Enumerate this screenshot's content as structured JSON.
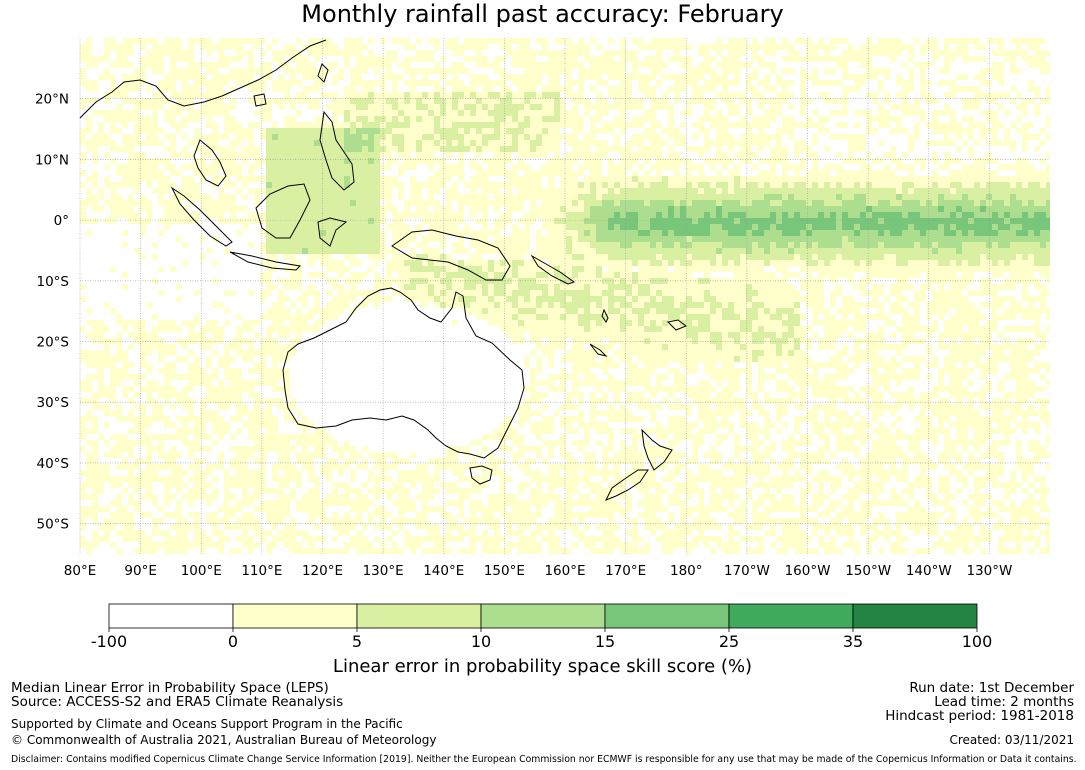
{
  "title": "Monthly rainfall past accuracy: February",
  "map": {
    "lon_ticks": [
      "80°E",
      "90°E",
      "100°E",
      "110°E",
      "120°E",
      "130°E",
      "140°E",
      "150°E",
      "160°E",
      "170°E",
      "180°",
      "170°W",
      "160°W",
      "150°W",
      "140°W",
      "130°W"
    ],
    "lat_ticks": [
      "20°N",
      "10°N",
      "0°",
      "10°S",
      "20°S",
      "30°S",
      "40°S",
      "50°S"
    ],
    "lon_range": [
      80,
      240
    ],
    "lat_range": [
      -55,
      30
    ]
  },
  "colorbar": {
    "title": "Linear error in probability space skill score (%)",
    "boundaries": [
      "-100",
      "0",
      "5",
      "10",
      "15",
      "25",
      "35",
      "100"
    ],
    "colors": [
      "#ffffff",
      "#ffffcc",
      "#d9f0a3",
      "#addd8e",
      "#78c679",
      "#41ab5d",
      "#238443"
    ]
  },
  "footer": {
    "line1": "Median Linear Error in Probability Space (LEPS)",
    "line2": "Source: ACCESS-S2 and ERA5 Climate Reanalysis",
    "line3": "Supported by Climate and Oceans Support Program in the Pacific",
    "line4": "© Commonwealth of Australia 2021, Australian Bureau of Meteorology",
    "run_date": "Run date: 1st December",
    "lead_time": "Lead time: 2 months",
    "hindcast": "Hindcast period: 1981-2018",
    "created": "Created: 03/11/2021",
    "disclaimer": "Disclaimer: Contains modified Copernicus Climate Change Service Information [2019]. Neither the European Commission nor ECMWF is responsible for any use that may be made of the Copernicus Information or Data it contains."
  }
}
